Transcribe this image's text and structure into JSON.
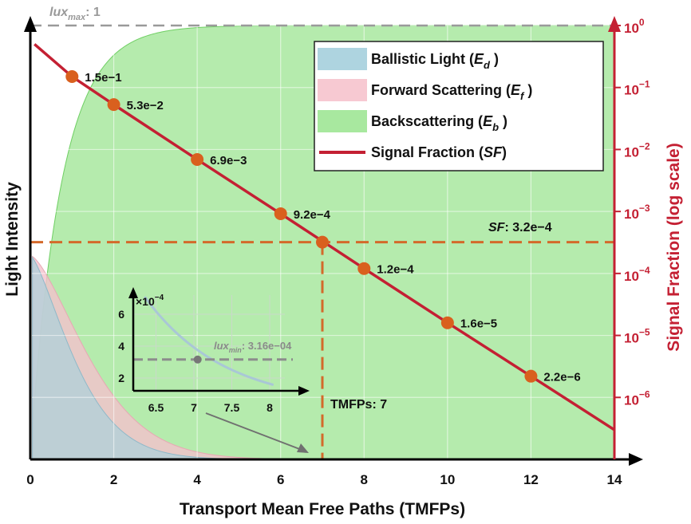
{
  "chart_data": {
    "type": "area",
    "xlabel": "Transport Mean Free Paths (TMFPs)",
    "ylabel_left": "Light Intensity",
    "ylabel_right": "Signal Fraction (log scale)",
    "xlim": [
      0,
      14
    ],
    "x_ticks": [
      "0",
      "2",
      "4",
      "6",
      "8",
      "10",
      "12",
      "14"
    ],
    "right_axis": {
      "scale": "log",
      "range": [
        1e-07,
        1
      ],
      "ticks": [
        {
          "base": "10",
          "exp": "0"
        },
        {
          "base": "10",
          "exp": "−1"
        },
        {
          "base": "10",
          "exp": "−2"
        },
        {
          "base": "10",
          "exp": "−3"
        },
        {
          "base": "10",
          "exp": "−4"
        },
        {
          "base": "10",
          "exp": "−5"
        },
        {
          "base": "10",
          "exp": "−6"
        }
      ],
      "tick_values": [
        1,
        0.1,
        0.01,
        0.001,
        0.0001,
        1e-05,
        1e-06
      ]
    },
    "grid": true,
    "legend_position": "top-right",
    "legend": [
      {
        "pre": "Ballistic Light (",
        "var": "E",
        "sub": "d",
        "post": " )",
        "kind": "area",
        "color": "#aed4e0"
      },
      {
        "pre": "Forward Scattering (",
        "var": "E",
        "sub": "f",
        "post": " )",
        "kind": "area",
        "color": "#f7c9d2"
      },
      {
        "pre": "Backscattering (",
        "var": "E",
        "sub": "b",
        "post": " )",
        "kind": "area",
        "color": "#a8e89f"
      },
      {
        "pre": "Signal Fraction (",
        "var": "SF",
        "sub": "",
        "post": ")",
        "kind": "line",
        "color": "#c42033"
      }
    ],
    "signal_fraction": {
      "x_start": 0.1,
      "y_start": 0.5,
      "x_end": 14,
      "y_end": 3e-07,
      "points": [
        {
          "x": 1,
          "y": 0.15,
          "label": "1.5e−1"
        },
        {
          "x": 2,
          "y": 0.053,
          "label": "5.3e−2"
        },
        {
          "x": 4,
          "y": 0.0069,
          "label": "6.9e−3"
        },
        {
          "x": 6,
          "y": 0.00092,
          "label": "9.2e−4"
        },
        {
          "x": 8,
          "y": 0.00012,
          "label": "1.2e−4"
        },
        {
          "x": 10,
          "y": 1.6e-05,
          "label": "1.6e−5"
        },
        {
          "x": 12,
          "y": 2.2e-06,
          "label": "2.2e−6"
        }
      ]
    },
    "annotations": {
      "lux_max": {
        "var": "lux",
        "sub": "max",
        "value": ": 1"
      },
      "sf_line": {
        "var": "SF",
        "value": ": 3.2e−4",
        "y": 0.00032
      },
      "tmfp_line": {
        "text": "TMFPs: 7",
        "x": 7
      },
      "marker_point": {
        "x": 7,
        "y": 0.00032
      }
    },
    "inset": {
      "xlim": [
        6.2,
        8.2
      ],
      "ylim": [
        1.2,
        7.2
      ],
      "x_ticks": [
        "6.5",
        "7",
        "7.5",
        "8"
      ],
      "x_tick_values": [
        6.5,
        7,
        7.5,
        8
      ],
      "y_ticks": [
        "2",
        "4",
        "6"
      ],
      "y_tick_values": [
        2,
        4,
        6
      ],
      "multiplier": {
        "base": "×10",
        "exp": "−4"
      },
      "lux_min": {
        "var": "lux",
        "sub": "min",
        "value": ": 3.16e−04",
        "x": 7.05,
        "y": 3.16
      }
    }
  }
}
